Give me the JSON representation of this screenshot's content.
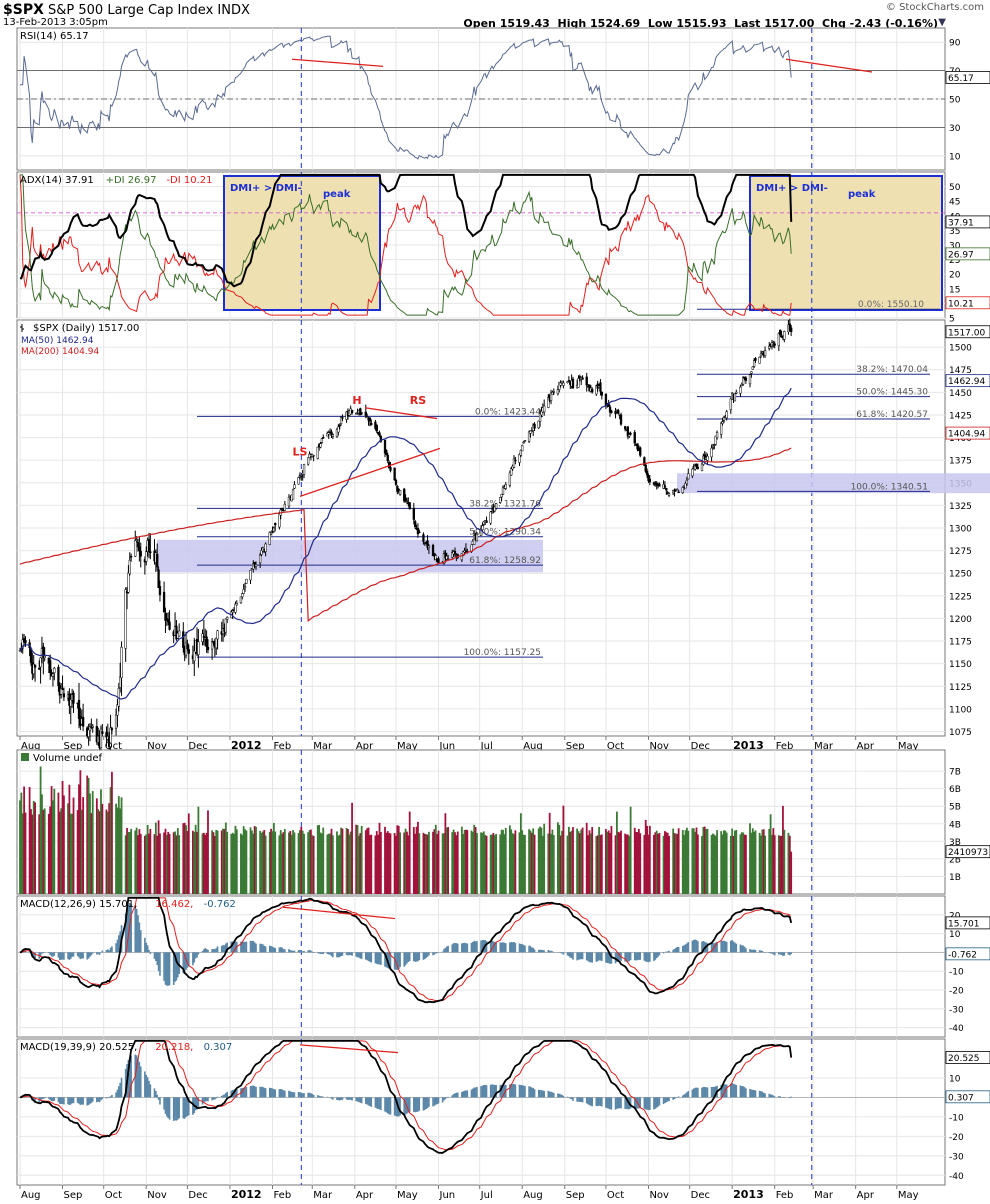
{
  "header": {
    "symbol": "$SPX",
    "name": "S&P 500 Large Cap Index",
    "exchange": "INDX",
    "date": "13-Feb-2013 3:05pm",
    "open_label": "Open",
    "open": "1519.43",
    "high_label": "High",
    "high": "1524.69",
    "low_label": "Low",
    "low": "1515.93",
    "last_label": "Last",
    "last": "1517.00",
    "chg_label": "Chg",
    "chg": "-2.43 (-0.16%)",
    "brand": "© StockCharts.com",
    "dropdown_icon": "triangle-down-icon"
  },
  "colors": {
    "price": "#000000",
    "ma50": "#1f2a8a",
    "ma200": "#cc1f1f",
    "rsi": "#5a6a90",
    "adx": "#000000",
    "plus_di": "#3a6e2a",
    "minus_di": "#e0201d",
    "fib_line": "#1f2a8a",
    "fib_zone": "#c9c7ef",
    "dmi_box": "#efe0b2",
    "dmi_border": "#1c2fd6",
    "vol_up": "#3b7a34",
    "vol_down": "#a3123a",
    "marker": "#1c2fd6",
    "trend": "#e0201d"
  },
  "x_axis": {
    "labels": [
      "Aug",
      "Sep",
      "Oct",
      "Nov",
      "Dec",
      "2012",
      "Feb",
      "Mar",
      "Apr",
      "May",
      "Jun",
      "Jul",
      "Aug",
      "Sep",
      "Oct",
      "Nov",
      "Dec",
      "2013",
      "Feb",
      "Mar",
      "Apr",
      "May"
    ],
    "bold": [
      "2012",
      "2013"
    ]
  },
  "chart_data": [
    {
      "type": "line",
      "panel": "rsi",
      "title": "RSI(14) 65.17",
      "ylim": [
        0,
        100
      ],
      "ticks": [
        10,
        30,
        50,
        70,
        90
      ],
      "reference_lines": [
        30,
        50,
        70
      ],
      "current_label": "65.17"
    },
    {
      "type": "line",
      "panel": "adx",
      "title": "ADX(14) 37.91 +DI 26.97 -DI 10.21",
      "title_parts": [
        {
          "text": "ADX(14) 37.91",
          "color": "#000000"
        },
        {
          "text": "+DI 26.97",
          "color": "#3a6e2a"
        },
        {
          "text": "-DI 10.21",
          "color": "#e0201d"
        }
      ],
      "ylim": [
        5,
        55
      ],
      "ticks": [
        5,
        10,
        15,
        20,
        25,
        30,
        35,
        40,
        45,
        50
      ],
      "series": [
        {
          "name": "ADX(14)"
        },
        {
          "name": "+DI"
        },
        {
          "name": "-DI"
        }
      ],
      "current_labels": [
        "37.91",
        "26.97",
        "10.21"
      ],
      "annotations": [
        {
          "text": "DMI+ > DMI-"
        },
        {
          "text": "peak"
        },
        {
          "text": "DMI+ > DMI-"
        },
        {
          "text": "peak"
        },
        {
          "text": "0.0%: 1550.10"
        }
      ]
    },
    {
      "type": "candlestick",
      "panel": "price",
      "title": "$SPX (Daily) 1517.00",
      "series": [
        {
          "name": "$SPX (Daily) 1517.00"
        },
        {
          "name": "MA(50) 1462.94"
        },
        {
          "name": "MA(200) 1404.94"
        }
      ],
      "ylim": [
        1070,
        1530
      ],
      "ticks": [
        1075,
        1100,
        1125,
        1150,
        1175,
        1200,
        1225,
        1250,
        1275,
        1300,
        1325,
        1350,
        1375,
        1400,
        1425,
        1450,
        1475,
        1500
      ],
      "current_labels": [
        "1517.00",
        "1462.94",
        "1404.94"
      ],
      "anchors": {
        "2011-08": 1160,
        "2011-10-04": 1075,
        "2011-10-27": 1292,
        "2011-11-25": 1159,
        "2012-04-02": 1421,
        "2012-06-04": 1267,
        "2012-09-14": 1467,
        "2012-11-16": 1343,
        "2013-02-13": 1517
      },
      "fib_sets": [
        {
          "levels": [
            {
              "label": "0.0%: 1423.44"
            },
            {
              "label": "38.2%: 1321.76"
            },
            {
              "label": "50.0%: 1290.34"
            },
            {
              "label": "61.8%: 1258.92"
            },
            {
              "label": "100.0%: 1157.25"
            }
          ]
        },
        {
          "levels": [
            {
              "label": "38.2%: 1470.04"
            },
            {
              "label": "50.0%: 1445.30"
            },
            {
              "label": "61.8%: 1420.57"
            },
            {
              "label": "100.0%: 1340.51"
            }
          ]
        }
      ],
      "annotations": [
        {
          "text": "LS"
        },
        {
          "text": "H"
        },
        {
          "text": "RS"
        }
      ]
    },
    {
      "type": "bar",
      "panel": "volume",
      "title": "Volume undef",
      "ticks_labels": [
        "1B",
        "2B",
        "3B",
        "4B",
        "5B",
        "6B",
        "7B"
      ],
      "current_label": "2410973"
    },
    {
      "type": "line",
      "panel": "macd1",
      "title": "MACD(12,26,9) 15.701, 16.462, -0.762",
      "title_parts": [
        {
          "text": "MACD(12,26,9) 15.701,",
          "color": "#000000"
        },
        {
          "text": "16.462,",
          "color": "#e0201d"
        },
        {
          "text": "-0.762",
          "color": "#1f5e86"
        }
      ],
      "ylim": [
        -45,
        30
      ],
      "ticks": [
        20,
        10,
        0,
        -10,
        -20,
        -30,
        -40
      ],
      "series": [
        {
          "name": "MACD(12,26,9)"
        },
        {
          "name": "Signal"
        },
        {
          "name": "Histogram"
        }
      ],
      "current_labels": [
        "15.701",
        "-0.762"
      ]
    },
    {
      "type": "line",
      "panel": "macd2",
      "title": "MACD(19,39,9) 20.525, 20.218, 0.307",
      "title_parts": [
        {
          "text": "MACD(19,39,9) 20.525,",
          "color": "#000000"
        },
        {
          "text": "20.218,",
          "color": "#e0201d"
        },
        {
          "text": "0.307",
          "color": "#1f5e86"
        }
      ],
      "ylim": [
        -45,
        30
      ],
      "ticks": [
        10,
        0,
        -10,
        -20,
        -30,
        -40
      ],
      "series": [
        {
          "name": "MACD(19,39,9)"
        },
        {
          "name": "Signal"
        },
        {
          "name": "Histogram"
        }
      ],
      "current_labels": [
        "20.525",
        "0.307"
      ]
    }
  ]
}
